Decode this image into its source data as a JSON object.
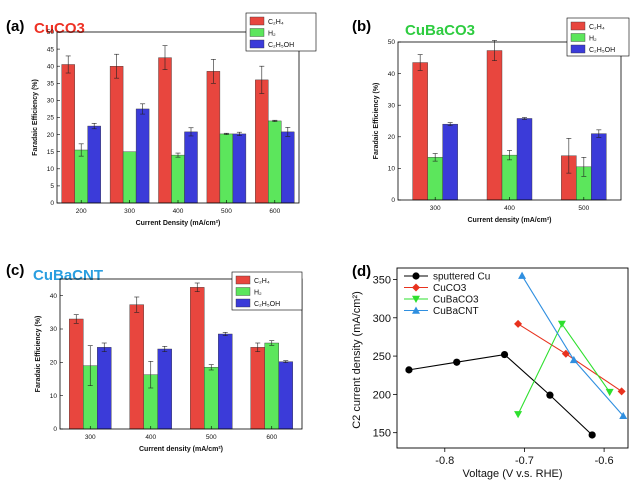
{
  "colors": {
    "C2H4": "#e8463e",
    "H2": "#5ce65c",
    "C2H5OH": "#3b3bd9",
    "sputtered": "#000000",
    "CuCO3": "#e8321e",
    "CuBaCO3": "#2ee02e",
    "CuBaCNT": "#2f8fe0",
    "title_a": "#ee3124",
    "title_b": "#2ecc40",
    "title_c": "#2a9ee0"
  },
  "chart_data": [
    {
      "type": "bar",
      "panel": "(a)",
      "title": "CuCO3",
      "xlabel": "Current Density (mA/cm²)",
      "ylabel": "Faradaic Efficiency (%)",
      "categories": [
        "200",
        "300",
        "400",
        "500",
        "600"
      ],
      "ylim": [
        0,
        50
      ],
      "yticks": [
        "0",
        "5",
        "10",
        "15",
        "20",
        "25",
        "30",
        "35",
        "40",
        "45",
        "50"
      ],
      "series": [
        {
          "name": "C2H4",
          "label": "C₂H₄",
          "values": [
            40.5,
            40.0,
            42.5,
            38.5,
            36.0
          ],
          "err": [
            2.5,
            3.5,
            3.5,
            3.5,
            4.0
          ]
        },
        {
          "name": "H2",
          "label": "H₂",
          "values": [
            15.5,
            15.0,
            14.0,
            20.2,
            24.0
          ],
          "err": [
            1.8,
            0.0,
            0.6,
            0.2,
            0.2
          ]
        },
        {
          "name": "C2H5OH",
          "label": "C₂H₅OH",
          "values": [
            22.5,
            27.5,
            20.8,
            20.2,
            20.8
          ],
          "err": [
            0.8,
            1.5,
            1.2,
            0.5,
            1.3
          ]
        }
      ],
      "legend": "top-right"
    },
    {
      "type": "bar",
      "panel": "(b)",
      "title": "CuBaCO3",
      "xlabel": "Current density (mA/cm²)",
      "ylabel": "Faradaic Efficiency (%)",
      "categories": [
        "300",
        "400",
        "500"
      ],
      "ylim": [
        0,
        50
      ],
      "yticks": [
        "0",
        "10",
        "20",
        "30",
        "40",
        "50"
      ],
      "series": [
        {
          "name": "C2H4",
          "label": "C₂H₄",
          "values": [
            43.5,
            47.3,
            14.0
          ],
          "err": [
            2.5,
            3.2,
            5.5
          ]
        },
        {
          "name": "H2",
          "label": "H₂",
          "values": [
            13.5,
            14.2,
            10.5
          ],
          "err": [
            1.2,
            1.5,
            3.0
          ]
        },
        {
          "name": "C2H5OH",
          "label": "C₂H₅OH",
          "values": [
            24.0,
            25.8,
            21.0
          ],
          "err": [
            0.5,
            0.3,
            1.2
          ]
        }
      ],
      "legend": "top-right"
    },
    {
      "type": "bar",
      "panel": "(c)",
      "title": "CuBaCNT",
      "xlabel": "Current density (mA/cm²)",
      "ylabel": "Faradaic Efficiency (%)",
      "categories": [
        "300",
        "400",
        "500",
        "600"
      ],
      "ylim": [
        0,
        45
      ],
      "yticks": [
        "0",
        "10",
        "20",
        "30",
        "40"
      ],
      "series": [
        {
          "name": "C2H4",
          "label": "C₂H₄",
          "values": [
            33.0,
            37.3,
            42.5,
            24.5
          ],
          "err": [
            1.3,
            2.3,
            1.3,
            1.3
          ]
        },
        {
          "name": "H2",
          "label": "H₂",
          "values": [
            19.0,
            16.3,
            18.5,
            25.8
          ],
          "err": [
            6.0,
            4.0,
            0.8,
            0.7
          ]
        },
        {
          "name": "C2H5OH",
          "label": "C₂H₅OH",
          "values": [
            24.5,
            24.0,
            28.5,
            20.2
          ],
          "err": [
            1.3,
            0.8,
            0.5,
            0.3
          ]
        }
      ],
      "legend": "top-right"
    },
    {
      "type": "line",
      "panel": "(d)",
      "xlabel": "Voltage (V v.s. RHE)",
      "ylabel": "C2 current density (mA/cm²)",
      "xlim": [
        -0.86,
        -0.57
      ],
      "ylim": [
        130,
        365
      ],
      "xticks": [
        "-0.8",
        "-0.7",
        "-0.6"
      ],
      "yticks": [
        "150",
        "200",
        "250",
        "300",
        "350"
      ],
      "series": [
        {
          "name": "sputtered Cu",
          "marker": "circle",
          "x": [
            -0.845,
            -0.785,
            -0.725,
            -0.668,
            -0.615
          ],
          "y": [
            232,
            242,
            252,
            199,
            147
          ]
        },
        {
          "name": "CuCO3",
          "marker": "diamond",
          "x": [
            -0.708,
            -0.648,
            -0.578
          ],
          "y": [
            292,
            253,
            204
          ]
        },
        {
          "name": "CuBaCO3",
          "marker": "triangle-down",
          "x": [
            -0.708,
            -0.653,
            -0.593
          ],
          "y": [
            174,
            292,
            203
          ]
        },
        {
          "name": "CuBaCNT",
          "marker": "triangle-up",
          "x": [
            -0.703,
            -0.638,
            -0.576
          ],
          "y": [
            355,
            245,
            172
          ]
        }
      ],
      "legend": "top-left"
    }
  ]
}
